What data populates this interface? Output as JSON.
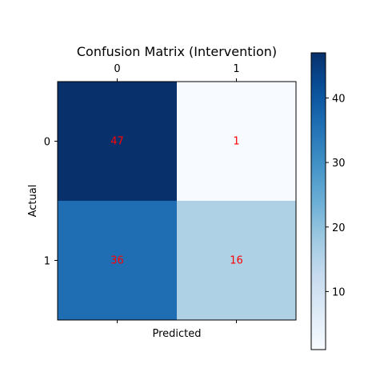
{
  "chart_data": {
    "type": "heatmap",
    "title": "Confusion Matrix (Intervention)",
    "xlabel": "Predicted",
    "ylabel": "Actual",
    "x_categories": [
      "0",
      "1"
    ],
    "y_categories": [
      "0",
      "1"
    ],
    "values": [
      [
        47,
        1
      ],
      [
        36,
        16
      ]
    ],
    "colormap": "Blues",
    "cell_text_color": "#ff0000",
    "colorbar": {
      "vmin": 1,
      "vmax": 47,
      "ticks": [
        10,
        20,
        30,
        40
      ]
    }
  }
}
